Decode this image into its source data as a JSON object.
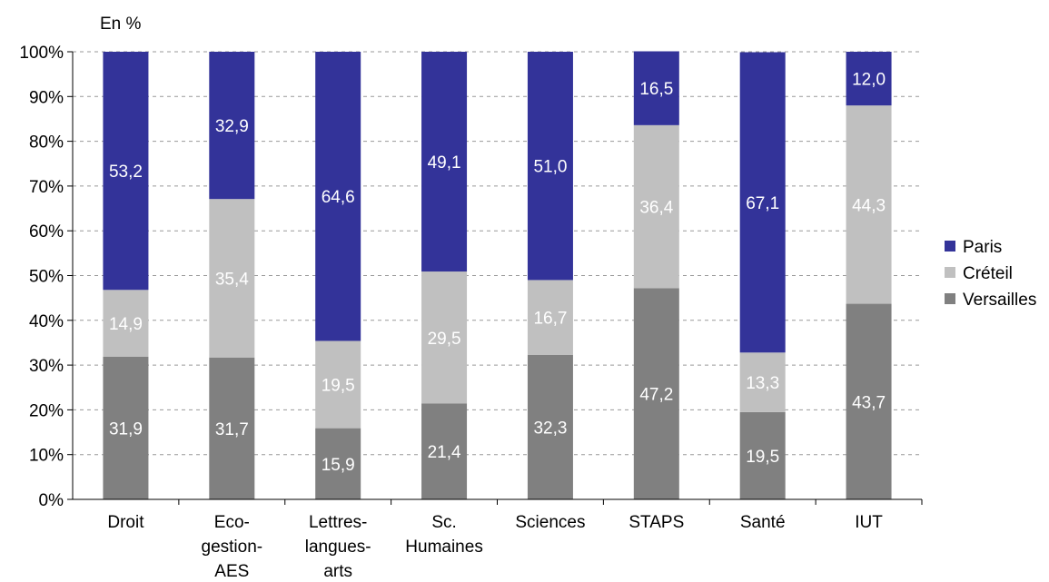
{
  "chart_data": {
    "type": "bar",
    "stacked": true,
    "title": "",
    "ylabel": "En %",
    "xlabel": "",
    "ylim": [
      0,
      100
    ],
    "y_ticks": [
      "0%",
      "10%",
      "20%",
      "30%",
      "40%",
      "50%",
      "60%",
      "70%",
      "80%",
      "90%",
      "100%"
    ],
    "grid": true,
    "legend_position": "right",
    "categories": [
      "Droit",
      "Eco-gestion-AES",
      "Lettres-langues-arts",
      "Sc. Humaines",
      "Sciences",
      "STAPS",
      "Santé",
      "IUT"
    ],
    "category_label_lines": [
      [
        "Droit"
      ],
      [
        "Eco-",
        "gestion-",
        "AES"
      ],
      [
        "Lettres-",
        "langues-",
        "arts"
      ],
      [
        "Sc.",
        "Humaines"
      ],
      [
        "Sciences"
      ],
      [
        "STAPS"
      ],
      [
        "Santé"
      ],
      [
        "IUT"
      ]
    ],
    "series": [
      {
        "name": "Versailles",
        "color": "#808080",
        "values": [
          31.9,
          31.7,
          15.9,
          21.4,
          32.3,
          47.2,
          19.5,
          43.7
        ],
        "labels": [
          "31,9",
          "31,7",
          "15,9",
          "21,4",
          "32,3",
          "47,2",
          "19,5",
          "43,7"
        ]
      },
      {
        "name": "Créteil",
        "color": "#c0c0c0",
        "values": [
          14.9,
          35.4,
          19.5,
          29.5,
          16.7,
          36.4,
          13.3,
          44.3
        ],
        "labels": [
          "14,9",
          "35,4",
          "19,5",
          "29,5",
          "16,7",
          "36,4",
          "13,3",
          "44,3"
        ]
      },
      {
        "name": "Paris",
        "color": "#333399",
        "values": [
          53.2,
          32.9,
          64.6,
          49.1,
          51.0,
          16.5,
          67.1,
          12.0
        ],
        "labels": [
          "53,2",
          "32,9",
          "64,6",
          "49,1",
          "51,0",
          "16,5",
          "67,1",
          "12,0"
        ]
      }
    ],
    "legend_order": [
      "Paris",
      "Créteil",
      "Versailles"
    ]
  }
}
